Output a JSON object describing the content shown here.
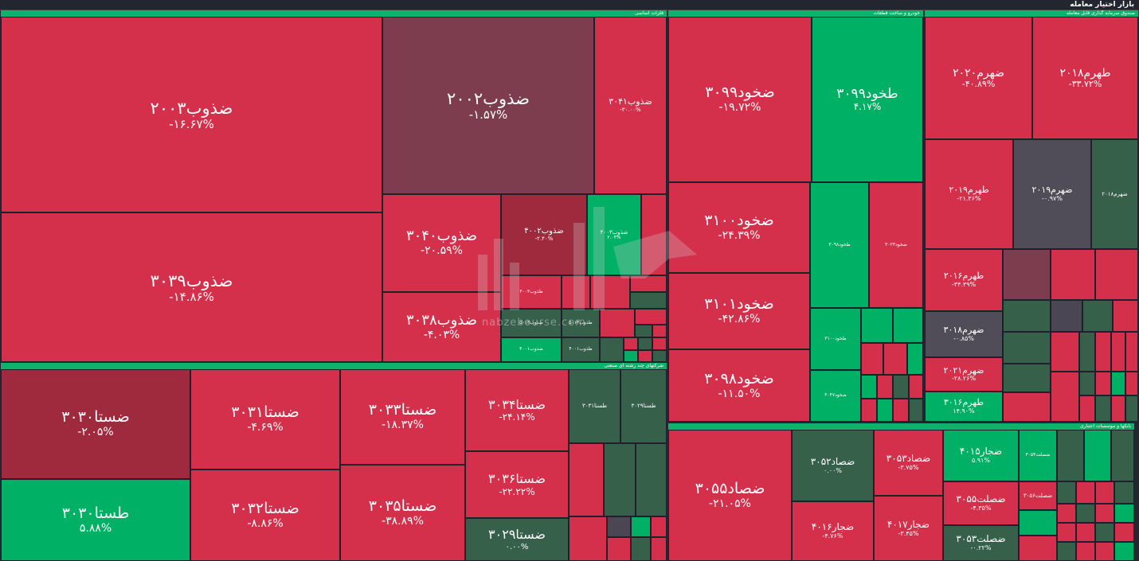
{
  "header": {
    "title": "بازار اختیار معامله"
  },
  "sections": [
    {
      "id": "s1",
      "label": "فلزات اساسی"
    },
    {
      "id": "s2",
      "label": "خودرو و ساخت قطعات"
    },
    {
      "id": "s3",
      "label": "صندوق سرمایه گذاری قابل معامله"
    },
    {
      "id": "s4",
      "label": "شرکتهای چند رشته ای صنعتی"
    },
    {
      "id": "s5",
      "label": "بانکها و موسسات اعتباری"
    }
  ],
  "tiles": [
    {
      "name": "ضذوب۲۰۰۳",
      "pct": "-۱۶.۶۷%"
    },
    {
      "name": "ضذوب۲۰۰۲",
      "pct": "-۱.۵۷%"
    },
    {
      "name": "ضذوب۳۰۴۱",
      "pct": "-۳۰.۰۰%"
    },
    {
      "name": "ضذوب۳۰۳۹",
      "pct": "-۱۴.۸۶%"
    },
    {
      "name": "ضذوب۳۰۴۰",
      "pct": "-۲۰.۵۹%"
    },
    {
      "name": "ضذوب۳۰۳۸",
      "pct": "-۴.۰۳%"
    },
    {
      "name": "ضذوب۴۰۰۲",
      "pct": "-۲.۴۰%"
    },
    {
      "name": "ضذوب۴۰۰۳",
      "pct": "۲.۰۴%"
    },
    {
      "name": "طذوب۴۰۰۳",
      "pct": ""
    },
    {
      "name": "ضذوب۵۰۱۳",
      "pct": ""
    },
    {
      "name": "طذوب۵۰۱۳",
      "pct": ""
    },
    {
      "name": "طذوب۴۰۰۱",
      "pct": ""
    },
    {
      "name": "ضذوب۴۰۰۱",
      "pct": ""
    },
    {
      "name": "ضخود۳۰۹۹",
      "pct": "-۱۹.۷۲%"
    },
    {
      "name": "طخود۳۰۹۹",
      "pct": "۴.۱۷%"
    },
    {
      "name": "ضخود۳۱۰۰",
      "pct": "-۲۴.۳۹%"
    },
    {
      "name": "طخود۳۰۹۸",
      "pct": ""
    },
    {
      "name": "ضخود۳۰۲۳",
      "pct": ""
    },
    {
      "name": "ضخود۳۱۰۱",
      "pct": "-۴۲.۸۶%"
    },
    {
      "name": "طخود۳۱۰۰",
      "pct": ""
    },
    {
      "name": "ضخود۳۰۹۸",
      "pct": "-۱۱.۵۰%"
    },
    {
      "name": "ضخود۳۰۴۷",
      "pct": ""
    },
    {
      "name": "ضهرم۲۰۲۰",
      "pct": "-۴۰.۸۹%"
    },
    {
      "name": "طهرم۲۰۱۸",
      "pct": "-۳۳.۷۲%"
    },
    {
      "name": "طهرم۲۰۱۹",
      "pct": "-۲۱.۳۶%"
    },
    {
      "name": "ضهرم۲۰۱۹",
      "pct": "-۰.۹۷%"
    },
    {
      "name": "ضهرم۲۰۱۸",
      "pct": ""
    },
    {
      "name": "طهرم۲۰۱۶",
      "pct": "-۳۴.۳۹%"
    },
    {
      "name": "ضهرم۳۰۱۸",
      "pct": "-۰.۸۵%"
    },
    {
      "name": "ضهرم۲۰۲۱",
      "pct": "-۲۸.۲۶%"
    },
    {
      "name": "طهرم۳۰۱۶",
      "pct": "۱۴.۹۰%"
    },
    {
      "name": "ضستا۳۰۳۰",
      "pct": "-۲.۰۵%"
    },
    {
      "name": "ضستا۳۰۳۱",
      "pct": "-۴.۶۹%"
    },
    {
      "name": "ضستا۳۰۳۳",
      "pct": "-۱۸.۳۷%"
    },
    {
      "name": "ضستا۳۰۳۴",
      "pct": "-۲۴.۱۴%"
    },
    {
      "name": "طستا۳۰۳۰",
      "pct": "۵.۸۸%"
    },
    {
      "name": "ضستا۳۰۳۲",
      "pct": "-۸.۸۶%"
    },
    {
      "name": "ضستا۳۰۳۵",
      "pct": "-۳۸.۸۹%"
    },
    {
      "name": "ضستا۳۰۳۶",
      "pct": "-۲۲.۲۲%"
    },
    {
      "name": "ضستا۳۰۲۹",
      "pct": "۰.۰۰%"
    },
    {
      "name": "طستا۳۰۲۹",
      "pct": ""
    },
    {
      "name": "طستا۳۰۳۱",
      "pct": ""
    },
    {
      "name": "ضصاد۳۰۵۵",
      "pct": "-۲۱.۰۵%"
    },
    {
      "name": "ضصاد۳۰۵۲",
      "pct": "۰.۰۰%"
    },
    {
      "name": "ضصاد۳۰۵۳",
      "pct": "-۳.۷۵%"
    },
    {
      "name": "ضجار۴۰۱۵",
      "pct": "۵.۹۱%"
    },
    {
      "name": "ضصلت۳۰۵۴",
      "pct": ""
    },
    {
      "name": "ضصلت۳۰۵۵",
      "pct": "-۴.۳۵%"
    },
    {
      "name": "ضجار۴۰۱۶",
      "pct": "-۴.۷۶%"
    },
    {
      "name": "ضجار۴۰۱۷",
      "pct": "-۳.۴۵%"
    },
    {
      "name": "ضصلت۳۰۵۶",
      "pct": ""
    },
    {
      "name": "ضصلت۳۰۵۳",
      "pct": "-۰.۲۲%"
    }
  ],
  "watermark": {
    "text": "nabzebourse.com"
  },
  "colors": {
    "red": "#d5304b",
    "green": "#00b064",
    "dark_red": "#a02a3d",
    "mauve": "#7d3d4e",
    "dark_green": "#37604b",
    "gray": "#4b4653",
    "section_header": "#0fb26a"
  }
}
